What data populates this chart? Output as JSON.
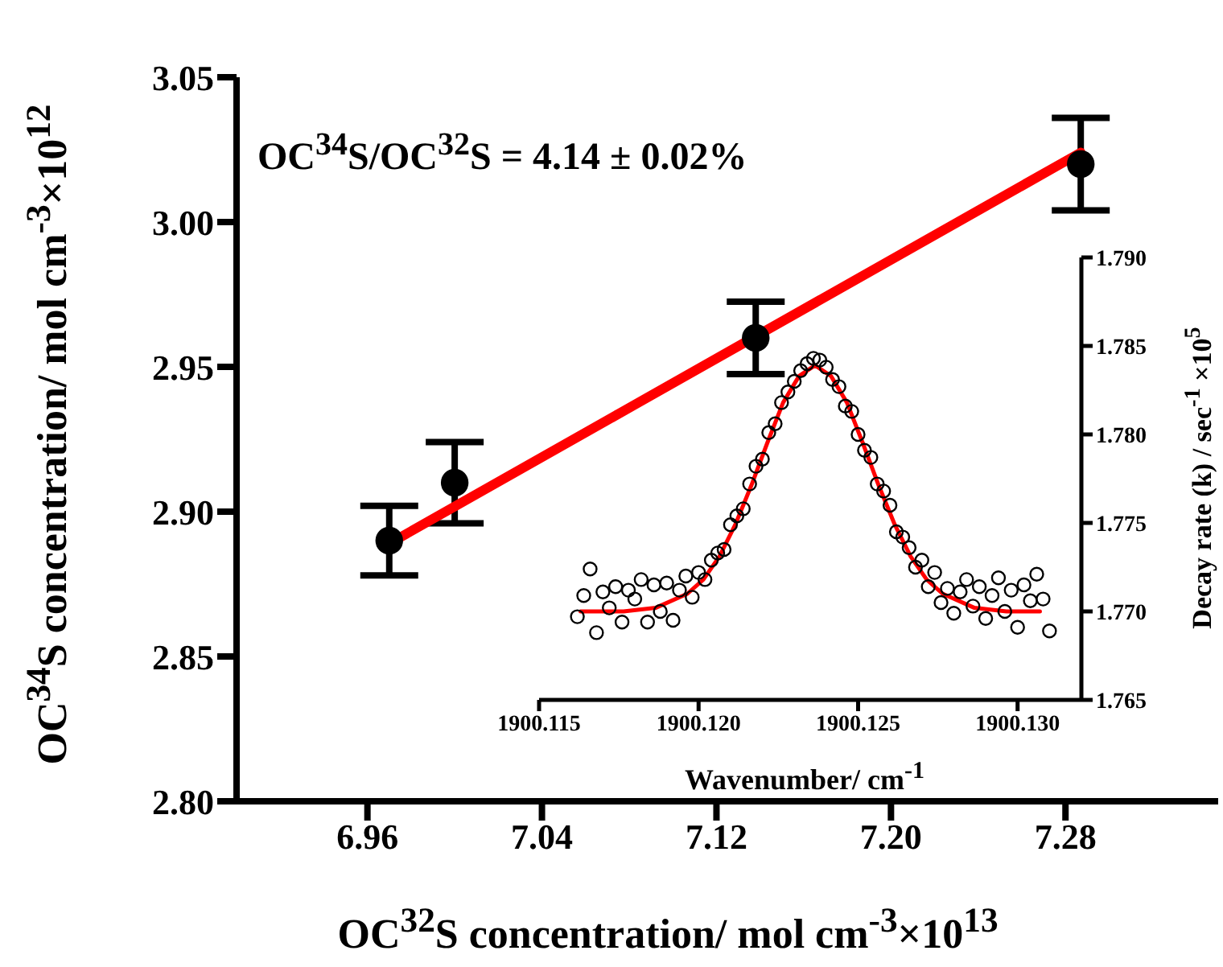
{
  "chart_data": [
    {
      "type": "scatter",
      "xlabel": "OC$^{32}$S concentration/ mol cm$^{-3}$×10$^{13}$",
      "ylabel": "OC$^{34}$S concentration/ mol cm$^{-3}$×10$^{12}$",
      "annotations": [
        "OC$^{34}$S/OC$^{32}$S = 4.14 ± 0.02%"
      ],
      "xlim": [
        6.9,
        7.35
      ],
      "xticks": [
        6.96,
        7.04,
        7.12,
        {
          "value": 7.2,
          "label": "7.20"
        },
        7.28
      ],
      "ylim": [
        2.8,
        3.05
      ],
      "yticks": [
        {
          "value": 2.8,
          "label": "2.80"
        },
        2.85,
        {
          "value": 2.9,
          "label": "2.90"
        },
        2.95,
        {
          "value": 3.0,
          "label": "3.00"
        },
        3.05
      ],
      "grid": false,
      "legend": false,
      "series": [
        {
          "marker": "circle",
          "color": "#000000",
          "x": [
            6.97,
            7.0,
            7.138,
            7.287
          ],
          "values": [
            2.89,
            2.91,
            2.96,
            3.02
          ],
          "errors": [
            0.012,
            0.014,
            0.0125,
            0.016
          ]
        },
        {
          "type": "line",
          "marker": "none",
          "color": "#ff0000",
          "x": [
            6.97,
            7.287
          ],
          "values": [
            2.889,
            3.024
          ]
        }
      ]
    },
    {
      "type": "scatter",
      "xlabel": "Wavenumber/ cm$^{-1}$",
      "y2label": "Decay rate (k) / sec$^{-1}$ ×10$^{5}$",
      "xlim": [
        1900.115,
        1900.132
      ],
      "xticks": [
        1900.115,
        {
          "value": 1900.12,
          "label": "1900.120"
        },
        1900.125,
        {
          "value": 1900.13,
          "label": "1900.130"
        }
      ],
      "y2lim": [
        1.765,
        1.79
      ],
      "y2ticks": [
        1.765,
        {
          "value": 1.77,
          "label": "1.770"
        },
        1.775,
        {
          "value": 1.78,
          "label": "1.780"
        },
        1.785,
        {
          "value": 1.79,
          "label": "1.790"
        }
      ],
      "grid": false,
      "legend": false,
      "series": [
        {
          "marker": "circle",
          "axis": "y2",
          "color": "#000000",
          "x": [
            1900.1162,
            1900.1164,
            1900.1166,
            1900.1168,
            1900.117,
            1900.1172,
            1900.1174,
            1900.1176,
            1900.1178,
            1900.118,
            1900.1182,
            1900.1184,
            1900.1186,
            1900.1188,
            1900.119,
            1900.1192,
            1900.1194,
            1900.1196,
            1900.1198,
            1900.12,
            1900.1202,
            1900.1204,
            1900.1206,
            1900.1208,
            1900.121,
            1900.1212,
            1900.1214,
            1900.1216,
            1900.1218,
            1900.122,
            1900.1222,
            1900.1224,
            1900.1226,
            1900.1228,
            1900.123,
            1900.1232,
            1900.1234,
            1900.1236,
            1900.1238,
            1900.124,
            1900.1242,
            1900.1244,
            1900.1246,
            1900.1248,
            1900.125,
            1900.1252,
            1900.1254,
            1900.1256,
            1900.1258,
            1900.126,
            1900.1262,
            1900.1264,
            1900.1266,
            1900.1268,
            1900.127,
            1900.1272,
            1900.1274,
            1900.1276,
            1900.1278,
            1900.128,
            1900.1282,
            1900.1284,
            1900.1286,
            1900.1288,
            1900.129,
            1900.1292,
            1900.1294,
            1900.1296,
            1900.1298,
            1900.13,
            1900.1302,
            1900.1304,
            1900.1306,
            1900.1308,
            1900.131
          ],
          "values": [
            1.7697,
            1.7709,
            1.7724,
            1.7688,
            1.7711,
            1.7702,
            1.7714,
            1.7694,
            1.7712,
            1.7707,
            1.7718,
            1.7694,
            1.7715,
            1.77,
            1.7716,
            1.7695,
            1.7712,
            1.772,
            1.7708,
            1.7722,
            1.7718,
            1.7729,
            1.7733,
            1.7735,
            1.7749,
            1.7754,
            1.7758,
            1.7772,
            1.7782,
            1.7786,
            1.7801,
            1.7806,
            1.7818,
            1.7824,
            1.783,
            1.7836,
            1.784,
            1.7843,
            1.7842,
            1.7838,
            1.7831,
            1.7827,
            1.7816,
            1.7813,
            1.78,
            1.7791,
            1.7787,
            1.7772,
            1.7768,
            1.776,
            1.7745,
            1.7742,
            1.7736,
            1.7725,
            1.7729,
            1.7714,
            1.7722,
            1.7705,
            1.7713,
            1.7699,
            1.7711,
            1.7718,
            1.7703,
            1.7714,
            1.7696,
            1.7709,
            1.7719,
            1.77,
            1.7712,
            1.7691,
            1.7715,
            1.7706,
            1.7721,
            1.7707,
            1.7689
          ]
        },
        {
          "type": "line",
          "marker": "none",
          "axis": "y2",
          "color": "#ff0000",
          "x": [
            1900.1163,
            1900.11765,
            1900.11865,
            1900.11965,
            1900.12015,
            1900.12065,
            1900.12115,
            1900.12165,
            1900.12215,
            1900.12265,
            1900.12315,
            1900.12365,
            1900.12415,
            1900.12465,
            1900.12515,
            1900.12565,
            1900.12615,
            1900.12665,
            1900.12715,
            1900.12765,
            1900.12865,
            1900.12965,
            1900.1307
          ],
          "values": [
            1.77,
            1.77,
            1.7702,
            1.771,
            1.7718,
            1.7731,
            1.7749,
            1.7771,
            1.7795,
            1.7818,
            1.7833,
            1.7839,
            1.7833,
            1.7818,
            1.7795,
            1.7771,
            1.7749,
            1.7731,
            1.7718,
            1.771,
            1.7702,
            1.77,
            1.77
          ]
        }
      ]
    }
  ]
}
